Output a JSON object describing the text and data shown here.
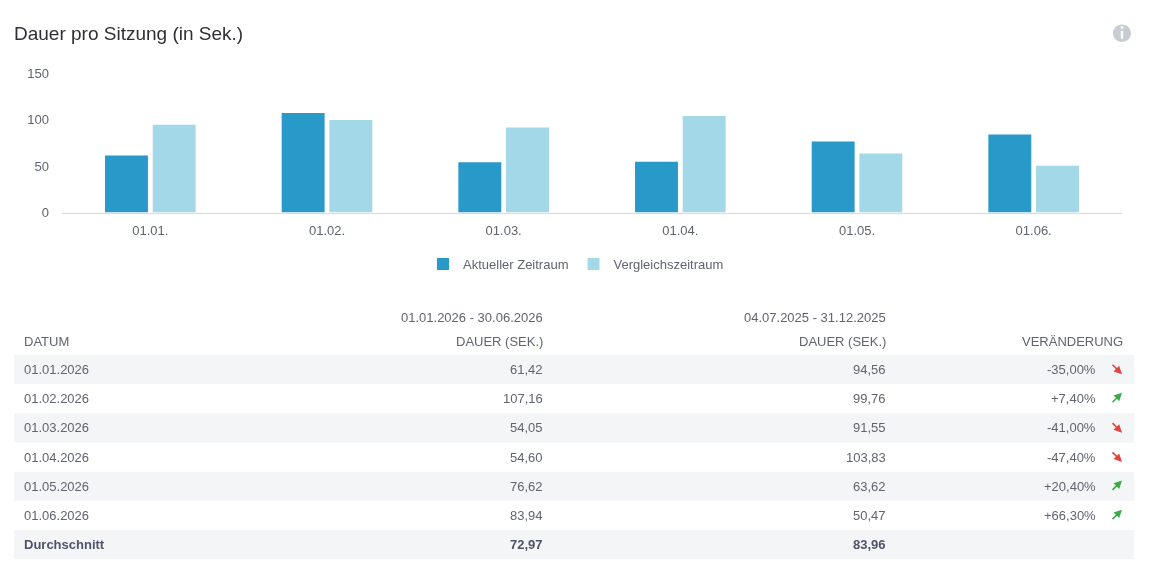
{
  "chart_data": {
    "type": "bar",
    "title": "Dauer pro Sitzung (in Sek.)",
    "categories": [
      "01.01.",
      "01.02.",
      "01.03.",
      "01.04.",
      "01.05.",
      "01.06."
    ],
    "series": [
      {
        "name": "Aktueller Zeitraum",
        "color": "#2899c9",
        "values": [
          61.42,
          107.16,
          54.05,
          54.6,
          76.62,
          83.94
        ]
      },
      {
        "name": "Vergleichszeitraum",
        "color": "#a3d8e8",
        "values": [
          94.56,
          99.76,
          91.55,
          103.83,
          63.62,
          50.47
        ]
      }
    ],
    "ylim": [
      0,
      150
    ],
    "yticks": [
      0,
      50,
      100,
      150
    ],
    "legend": "bottom",
    "annotations": [
      "01.01.2026 - 30.06.2026",
      "04.07.2025 - 31.12.2025",
      "DATUM",
      "DAUER (SEK.)",
      "DAUER (SEK.)",
      "VERÄNDERUNG",
      "01.01.2026",
      "61,42",
      "94,56",
      "-35,00%",
      "01.02.2026",
      "107,16",
      "99,76",
      "+7,40%",
      "01.03.2026",
      "54,05",
      "91,55",
      "-41,00%",
      "01.04.2026",
      "54,60",
      "103,83",
      "-47,40%",
      "01.05.2026",
      "76,62",
      "63,62",
      "+20,40%",
      "01.06.2026",
      "83,94",
      "50,47",
      "+66,30%",
      "Durchschnitt",
      "72,97",
      "83,96"
    ]
  }
}
